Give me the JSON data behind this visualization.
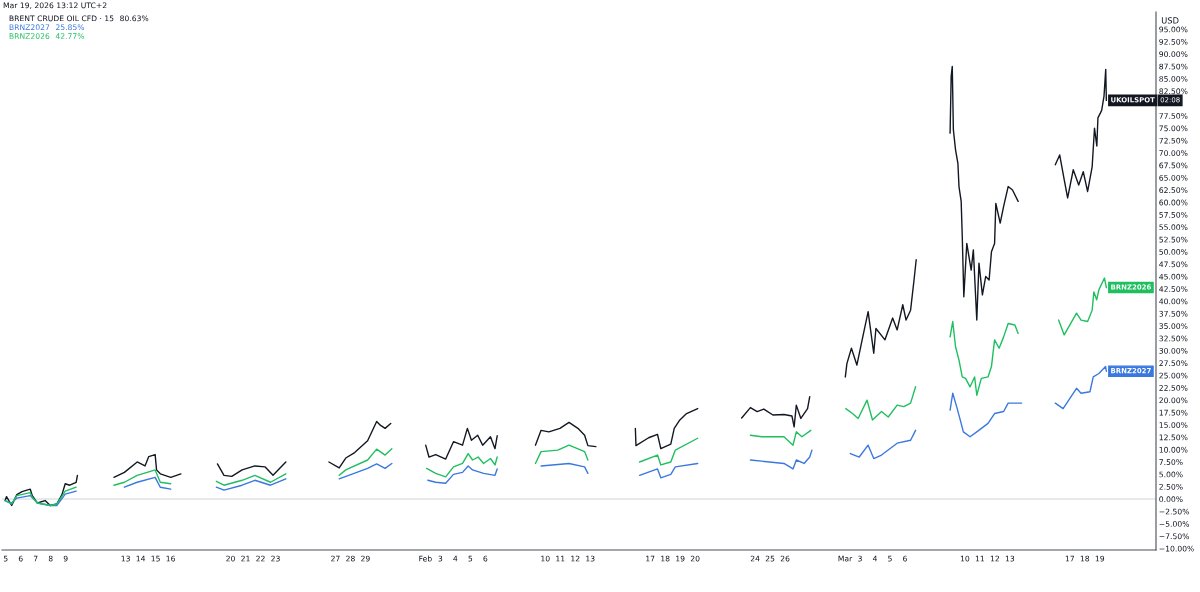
{
  "chart_data": {
    "type": "line",
    "title": "Mar 19, 2026 13:12 UTC+2",
    "ylabel": "USD",
    "legend": "top left",
    "line_style": "solid",
    "xlim": [
      "2026-01-04T18:00",
      "2026-03-22T18:00"
    ],
    "xticks": [
      {
        "value": "2026-01-05",
        "label": "5"
      },
      {
        "value": "2026-01-06",
        "label": "6"
      },
      {
        "value": "2026-01-07",
        "label": "7"
      },
      {
        "value": "2026-01-08",
        "label": "8"
      },
      {
        "value": "2026-01-09",
        "label": "9"
      },
      {
        "value": "2026-01-13",
        "label": "13"
      },
      {
        "value": "2026-01-14",
        "label": "14"
      },
      {
        "value": "2026-01-15",
        "label": "15"
      },
      {
        "value": "2026-01-16",
        "label": "16"
      },
      {
        "value": "2026-01-20",
        "label": "20"
      },
      {
        "value": "2026-01-21",
        "label": "21"
      },
      {
        "value": "2026-01-22",
        "label": "22"
      },
      {
        "value": "2026-01-23",
        "label": "23"
      },
      {
        "value": "2026-01-27",
        "label": "27"
      },
      {
        "value": "2026-01-28",
        "label": "28"
      },
      {
        "value": "2026-01-29",
        "label": "29"
      },
      {
        "value": "2026-02-02",
        "label": "Feb"
      },
      {
        "value": "2026-02-03",
        "label": "3"
      },
      {
        "value": "2026-02-04",
        "label": "4"
      },
      {
        "value": "2026-02-05",
        "label": "5"
      },
      {
        "value": "2026-02-06",
        "label": "6"
      },
      {
        "value": "2026-02-10",
        "label": "10"
      },
      {
        "value": "2026-02-11",
        "label": "11"
      },
      {
        "value": "2026-02-12",
        "label": "12"
      },
      {
        "value": "2026-02-13",
        "label": "13"
      },
      {
        "value": "2026-02-17",
        "label": "17"
      },
      {
        "value": "2026-02-18",
        "label": "18"
      },
      {
        "value": "2026-02-19",
        "label": "19"
      },
      {
        "value": "2026-02-20",
        "label": "20"
      },
      {
        "value": "2026-02-24",
        "label": "24"
      },
      {
        "value": "2026-02-25",
        "label": "25"
      },
      {
        "value": "2026-02-26",
        "label": "26"
      },
      {
        "value": "2026-03-02",
        "label": "Mar"
      },
      {
        "value": "2026-03-03",
        "label": "3"
      },
      {
        "value": "2026-03-04",
        "label": "4"
      },
      {
        "value": "2026-03-05",
        "label": "5"
      },
      {
        "value": "2026-03-06",
        "label": "6"
      },
      {
        "value": "2026-03-10",
        "label": "10"
      },
      {
        "value": "2026-03-11",
        "label": "11"
      },
      {
        "value": "2026-03-12",
        "label": "12"
      },
      {
        "value": "2026-03-13",
        "label": "13"
      },
      {
        "value": "2026-03-17",
        "label": "17"
      },
      {
        "value": "2026-03-18",
        "label": "18"
      },
      {
        "value": "2026-03-19",
        "label": "19"
      }
    ],
    "ylim": [
      -10.3,
      98.5
    ],
    "yticks": [
      {
        "value": -10,
        "label": "−10.00%"
      },
      {
        "value": -7.5,
        "label": "−7.50%"
      },
      {
        "value": -5,
        "label": "−5.00%"
      },
      {
        "value": -2.5,
        "label": "−2.50%"
      },
      {
        "value": 0,
        "label": "0.00%"
      },
      {
        "value": 2.5,
        "label": "2.50%"
      },
      {
        "value": 5,
        "label": "5.00%"
      },
      {
        "value": 7.5,
        "label": "7.50%"
      },
      {
        "value": 10,
        "label": "10.00%"
      },
      {
        "value": 12.5,
        "label": "12.50%"
      },
      {
        "value": 15,
        "label": "15.00%"
      },
      {
        "value": 17.5,
        "label": "17.50%"
      },
      {
        "value": 20,
        "label": "20.00%"
      },
      {
        "value": 22.5,
        "label": "22.50%"
      },
      {
        "value": 25,
        "label": "25.00%"
      },
      {
        "value": 27.5,
        "label": "27.50%"
      },
      {
        "value": 30,
        "label": "30.00%"
      },
      {
        "value": 32.5,
        "label": "32.50%"
      },
      {
        "value": 35,
        "label": "35.00%"
      },
      {
        "value": 37.5,
        "label": "37.50%"
      },
      {
        "value": 40,
        "label": "40.00%"
      },
      {
        "value": 42.5,
        "label": "42.50%"
      },
      {
        "value": 45,
        "label": "45.00%"
      },
      {
        "value": 47.5,
        "label": "47.50%"
      },
      {
        "value": 50,
        "label": "50.00%"
      },
      {
        "value": 52.5,
        "label": "52.50%"
      },
      {
        "value": 55,
        "label": "55.00%"
      },
      {
        "value": 57.5,
        "label": "57.50%"
      },
      {
        "value": 60,
        "label": "60.00%"
      },
      {
        "value": 62.5,
        "label": "62.50%"
      },
      {
        "value": 65,
        "label": "65.00%"
      },
      {
        "value": 67.5,
        "label": "67.50%"
      },
      {
        "value": 70,
        "label": "70.00%"
      },
      {
        "value": 72.5,
        "label": "72.50%"
      },
      {
        "value": 75,
        "label": "75.00%"
      },
      {
        "value": 77.5,
        "label": "77.50%"
      },
      {
        "value": 82.5,
        "label": "82.50%"
      },
      {
        "value": 85,
        "label": "85.00%"
      },
      {
        "value": 87.5,
        "label": "87.50%"
      },
      {
        "value": 90,
        "label": "90.00%"
      },
      {
        "value": 92.5,
        "label": "92.50%"
      },
      {
        "value": 95,
        "label": "95.00%"
      }
    ],
    "ref_lines": [
      {
        "axis": "y",
        "value": 0,
        "color": "#d1d4dc"
      }
    ],
    "series": [
      {
        "name": "BRENT CRUDE OIL CFD · 15",
        "color": "#131722",
        "x": [
          "2026-01-04T23:00",
          "2026-01-05T01:15",
          "2026-01-05T09:30",
          "2026-01-05T17:45",
          "2026-01-06T02:00",
          "2026-01-06T15:15",
          "2026-01-06T18:30",
          "2026-01-07T02:45",
          "2026-01-07T15:00",
          "2026-01-07T23:15",
          "2026-01-08T09:45",
          "2026-01-08T18:00",
          "2026-01-08T23:15",
          "2026-01-09T06:30",
          "2026-01-09T16:45",
          "2026-01-09T18:45",
          "2026-01-10T12:00",
          "2026-01-12T05:15",
          "2026-01-12T22:00",
          "2026-01-13T18:30",
          "2026-01-14T07:00",
          "2026-01-14T13:00",
          "2026-01-14T23:15",
          "2026-01-15T01:30",
          "2026-01-15T07:30",
          "2026-01-16T00:15",
          "2026-01-16T16:30",
          "2026-01-17T12:00",
          "2026-01-19T03:00",
          "2026-01-19T13:30",
          "2026-01-20T02:00",
          "2026-01-20T18:30",
          "2026-01-21T15:00",
          "2026-01-22T07:30",
          "2026-01-22T20:00",
          "2026-01-23T16:30",
          "2026-01-24T12:00",
          "2026-01-26T13:30",
          "2026-01-27T06:00",
          "2026-01-27T16:30",
          "2026-01-28T06:45",
          "2026-01-29T03:30",
          "2026-01-29T18:00",
          "2026-01-30T00:15",
          "2026-01-30T07:30",
          "2026-01-30T16:30",
          "2026-01-31T12:00",
          "2026-02-02T00:30",
          "2026-02-02T05:45",
          "2026-02-02T16:30",
          "2026-02-03T08:30",
          "2026-02-03T21:00",
          "2026-02-04T11:30",
          "2026-02-04T19:15",
          "2026-02-05T01:45",
          "2026-02-05T11:45",
          "2026-02-05T19:45",
          "2026-02-06T08:15",
          "2026-02-06T15:30",
          "2026-02-06T19:00",
          "2026-02-07T12:00",
          "2026-02-09T08:15",
          "2026-02-09T17:15",
          "2026-02-10T05:45",
          "2026-02-10T23:30",
          "2026-02-11T14:00",
          "2026-02-12T04:15",
          "2026-02-12T15:00",
          "2026-02-12T20:15",
          "2026-02-13T09:00",
          "2026-02-14T12:00",
          "2026-02-16T00:15",
          "2026-02-16T01:15",
          "2026-02-16T21:30",
          "2026-02-17T11:45",
          "2026-02-17T17:00",
          "2026-02-18T09:00",
          "2026-02-18T14:30",
          "2026-02-18T23:30",
          "2026-02-19T10:15",
          "2026-02-20T04:00",
          "2026-02-21T12:00",
          "2026-02-23T02:30",
          "2026-02-23T16:30",
          "2026-02-24T03:15",
          "2026-02-24T14:00",
          "2026-02-25T04:30",
          "2026-02-25T22:15",
          "2026-02-26T11:00",
          "2026-02-26T14:30",
          "2026-02-26T18:00",
          "2026-02-27T01:15",
          "2026-02-27T12:00",
          "2026-02-27T15:30",
          "2026-02-28T12:00",
          "2026-03-02T00:30",
          "2026-03-02T03:00",
          "2026-03-02T10:15",
          "2026-03-02T19:00",
          "2026-03-03T02:15",
          "2026-03-03T13:00",
          "2026-03-03T22:00",
          "2026-03-04T01:30",
          "2026-03-04T16:00",
          "2026-03-05T04:15",
          "2026-03-05T11:30",
          "2026-03-05T20:30",
          "2026-03-06T01:45",
          "2026-03-06T09:00",
          "2026-03-06T14:30",
          "2026-03-06T18:00",
          "2026-03-07T12:00",
          "2026-03-09T00:15",
          "2026-03-09T02:00",
          "2026-03-09T03:45",
          "2026-03-09T05:30",
          "2026-03-09T09:00",
          "2026-03-09T12:45",
          "2026-03-09T14:30",
          "2026-03-09T18:00",
          "2026-03-09T19:45",
          "2026-03-09T22:15",
          "2026-03-10T03:00",
          "2026-03-10T10:00",
          "2026-03-10T13:30",
          "2026-03-10T19:00",
          "2026-03-10T22:30",
          "2026-03-11T04:00",
          "2026-03-11T09:15",
          "2026-03-11T14:45",
          "2026-03-11T18:30",
          "2026-03-11T23:30",
          "2026-03-12T01:30",
          "2026-03-12T08:30",
          "2026-03-12T14:00",
          "2026-03-12T21:15",
          "2026-03-13T04:15",
          "2026-03-13T13:15",
          "2026-03-14T12:00",
          "2026-03-16T00:45",
          "2026-03-16T07:45",
          "2026-03-16T15:00",
          "2026-03-16T20:30",
          "2026-03-17T05:30",
          "2026-03-17T14:15",
          "2026-03-17T21:30",
          "2026-03-18T04:30",
          "2026-03-18T11:45",
          "2026-03-18T15:30",
          "2026-03-18T19:15",
          "2026-03-18T21:00",
          "2026-03-19T03:00",
          "2026-03-19T06:45",
          "2026-03-19T09:30",
          "2026-03-19T10:30"
        ],
        "values": [
          -0.3,
          0.5,
          -1.3,
          0.9,
          1.5,
          2.0,
          0.7,
          -0.8,
          -0.3,
          -1.3,
          -1.0,
          0.9,
          3.1,
          2.8,
          3.4,
          4.8,
          null,
          4.4,
          5.4,
          7.5,
          6.7,
          8.6,
          9.0,
          5.9,
          5.1,
          4.4,
          5.1,
          null,
          7.1,
          4.8,
          4.6,
          5.9,
          6.7,
          6.5,
          4.8,
          7.5,
          null,
          7.5,
          6.3,
          8.3,
          9.4,
          11.8,
          15.7,
          14.9,
          14.3,
          15.3,
          null,
          10.9,
          8.5,
          9.0,
          8.1,
          11.6,
          10.9,
          14.3,
          11.9,
          12.9,
          10.9,
          12.6,
          10.2,
          12.8,
          null,
          10.9,
          13.9,
          13.6,
          14.3,
          15.5,
          14.3,
          12.9,
          10.8,
          10.6,
          null,
          14.3,
          10.8,
          12.4,
          13.1,
          10.2,
          11.1,
          14.3,
          16.0,
          17.3,
          18.3,
          null,
          16.4,
          18.5,
          17.7,
          18.2,
          17.0,
          17.1,
          16.8,
          14.6,
          19.0,
          16.3,
          18.3,
          20.7,
          null,
          24.7,
          27.4,
          30.5,
          27.1,
          31.5,
          37.9,
          29.5,
          34.5,
          32.2,
          36.6,
          34.2,
          39.3,
          36.2,
          38.2,
          44.3,
          48.4,
          null,
          74.0,
          85.5,
          87.5,
          74.7,
          70.6,
          67.9,
          63.2,
          60.2,
          53.1,
          40.9,
          51.7,
          46.3,
          50.4,
          36.2,
          47.7,
          41.3,
          45.0,
          44.3,
          50.0,
          51.7,
          59.8,
          55.8,
          59.2,
          63.2,
          62.5,
          60.2,
          null,
          67.6,
          69.6,
          64.6,
          60.9,
          66.6,
          63.5,
          66.2,
          62.2,
          67.2,
          75.0,
          71.4,
          77.1,
          78.6,
          81.5,
          86.9,
          80.63
        ]
      },
      {
        "name": "BRNZ2027",
        "color": "#3a78e0",
        "x": [
          "2026-01-04T23:00",
          "2026-01-05T09:15",
          "2026-01-05T17:45",
          "2026-01-06T15:15",
          "2026-01-07T02:45",
          "2026-01-07T23:30",
          "2026-01-08T09:45",
          "2026-01-08T23:15",
          "2026-01-09T16:45",
          "2026-01-10T12:00",
          "2026-01-12T22:00",
          "2026-01-13T18:30",
          "2026-01-14T23:15",
          "2026-01-15T07:30",
          "2026-01-16T00:15",
          "2026-01-17T12:00",
          "2026-01-19T01:15",
          "2026-01-19T13:30",
          "2026-01-20T18:30",
          "2026-01-21T15:00",
          "2026-01-22T16:00",
          "2026-01-23T16:30",
          "2026-01-24T12:00",
          "2026-01-27T06:00",
          "2026-01-29T03:30",
          "2026-01-29T18:00",
          "2026-01-30T07:30",
          "2026-01-30T18:15",
          "2026-01-31T12:00",
          "2026-02-02T04:00",
          "2026-02-02T16:30",
          "2026-02-03T08:30",
          "2026-02-03T21:00",
          "2026-02-04T11:30",
          "2026-02-04T20:30",
          "2026-02-05T03:30",
          "2026-02-05T21:15",
          "2026-02-06T15:30",
          "2026-02-06T19:00",
          "2026-02-07T12:00",
          "2026-02-09T17:15",
          "2026-02-11T14:00",
          "2026-02-12T15:00",
          "2026-02-12T20:15",
          "2026-02-14T12:00",
          "2026-02-16T07:00",
          "2026-02-17T11:45",
          "2026-02-17T17:00",
          "2026-02-18T09:00",
          "2026-02-18T16:15",
          "2026-02-20T04:00",
          "2026-02-21T12:00",
          "2026-02-23T16:30",
          "2026-02-25T22:15",
          "2026-02-26T12:45",
          "2026-02-26T18:00",
          "2026-02-27T06:30",
          "2026-02-27T15:30",
          "2026-02-27T19:00",
          "2026-02-28T12:00",
          "2026-03-02T08:30",
          "2026-03-02T22:45",
          "2026-03-03T13:00",
          "2026-03-03T22:00",
          "2026-03-04T10:30",
          "2026-03-05T11:30",
          "2026-03-06T09:00",
          "2026-03-06T17:00",
          "2026-03-07T12:00",
          "2026-03-09T00:15",
          "2026-03-09T04:30",
          "2026-03-09T10:45",
          "2026-03-09T18:00",
          "2026-03-09T21:30",
          "2026-03-10T08:15",
          "2026-03-10T19:00",
          "2026-03-11T13:00",
          "2026-03-11T23:30",
          "2026-03-12T14:00",
          "2026-03-12T21:15",
          "2026-03-13T18:45",
          "2026-03-14T12:00",
          "2026-03-16T00:45",
          "2026-03-16T13:15",
          "2026-03-17T10:45",
          "2026-03-17T18:00",
          "2026-03-18T08:15",
          "2026-03-18T13:30",
          "2026-03-18T22:30",
          "2026-03-19T09:15",
          "2026-03-19T10:30"
        ],
        "values": [
          -0.3,
          -0.8,
          0.2,
          0.7,
          -0.8,
          -1.3,
          -1.3,
          1.0,
          1.6,
          null,
          2.4,
          3.4,
          4.4,
          2.4,
          2.0,
          null,
          2.4,
          1.8,
          2.8,
          3.8,
          2.8,
          4.1,
          null,
          4.1,
          6.2,
          7.1,
          6.2,
          7.2,
          null,
          3.8,
          3.4,
          3.2,
          5.0,
          5.4,
          6.7,
          5.9,
          5.2,
          4.8,
          6.1,
          null,
          6.7,
          7.2,
          6.5,
          5.2,
          null,
          4.8,
          6.1,
          4.3,
          5.0,
          6.5,
          7.2,
          null,
          7.9,
          7.2,
          6.1,
          7.9,
          7.2,
          8.5,
          9.9,
          null,
          9.2,
          8.5,
          10.9,
          8.2,
          8.9,
          11.3,
          11.9,
          13.9,
          null,
          18.0,
          21.4,
          18.7,
          15.3,
          13.6,
          12.6,
          13.6,
          15.3,
          17.3,
          17.7,
          19.4,
          19.4,
          null,
          19.4,
          18.3,
          22.4,
          21.4,
          21.7,
          24.7,
          25.4,
          26.8,
          25.85
        ]
      },
      {
        "name": "BRNZ2026",
        "color": "#1fbf5f",
        "x": [
          "2026-01-04T23:00",
          "2026-01-05T09:15",
          "2026-01-05T17:45",
          "2026-01-06T15:15",
          "2026-01-06T18:30",
          "2026-01-07T02:45",
          "2026-01-07T23:30",
          "2026-01-08T09:45",
          "2026-01-08T23:15",
          "2026-01-09T16:45",
          "2026-01-10T12:00",
          "2026-01-12T05:15",
          "2026-01-12T22:00",
          "2026-01-13T18:30",
          "2026-01-14T13:00",
          "2026-01-14T23:15",
          "2026-01-15T07:30",
          "2026-01-16T00:15",
          "2026-01-17T12:00",
          "2026-01-19T01:15",
          "2026-01-19T13:30",
          "2026-01-20T18:30",
          "2026-01-21T15:00",
          "2026-01-22T16:00",
          "2026-01-23T16:30",
          "2026-01-24T12:00",
          "2026-01-27T06:00",
          "2026-01-27T16:30",
          "2026-01-29T03:30",
          "2026-01-29T18:00",
          "2026-01-30T07:30",
          "2026-01-30T18:15",
          "2026-01-31T12:00",
          "2026-02-02T02:00",
          "2026-02-02T16:30",
          "2026-02-03T08:30",
          "2026-02-03T21:00",
          "2026-02-04T11:30",
          "2026-02-04T20:30",
          "2026-02-05T03:30",
          "2026-02-05T12:30",
          "2026-02-05T21:15",
          "2026-02-06T08:15",
          "2026-02-06T15:30",
          "2026-02-06T19:00",
          "2026-02-07T12:00",
          "2026-02-09T08:15",
          "2026-02-09T17:15",
          "2026-02-10T20:00",
          "2026-02-11T14:00",
          "2026-02-12T15:00",
          "2026-02-12T20:15",
          "2026-02-14T12:00",
          "2026-02-16T07:00",
          "2026-02-17T11:45",
          "2026-02-17T17:00",
          "2026-02-18T09:00",
          "2026-02-18T16:15",
          "2026-02-20T04:00",
          "2026-02-21T12:00",
          "2026-02-23T16:30",
          "2026-02-24T10:30",
          "2026-02-25T22:15",
          "2026-02-26T12:45",
          "2026-02-26T18:00",
          "2026-02-27T03:00",
          "2026-02-27T17:15",
          "2026-02-28T12:00",
          "2026-03-02T01:15",
          "2026-03-02T12:00",
          "2026-03-02T21:00",
          "2026-03-03T11:15",
          "2026-03-03T20:00",
          "2026-03-04T10:30",
          "2026-03-04T21:15",
          "2026-03-05T11:30",
          "2026-03-05T22:15",
          "2026-03-06T09:00",
          "2026-03-06T17:00",
          "2026-03-07T12:00",
          "2026-03-09T00:15",
          "2026-03-09T04:30",
          "2026-03-09T09:00",
          "2026-03-09T14:30",
          "2026-03-09T19:45",
          "2026-03-10T01:00",
          "2026-03-10T08:15",
          "2026-03-10T15:30",
          "2026-03-10T19:00",
          "2026-03-11T02:15",
          "2026-03-11T13:00",
          "2026-03-11T18:30",
          "2026-03-11T23:30",
          "2026-03-12T06:45",
          "2026-03-12T14:00",
          "2026-03-12T21:15",
          "2026-03-13T08:00",
          "2026-03-13T13:15",
          "2026-03-14T12:00",
          "2026-03-16T06:00",
          "2026-03-16T15:00",
          "2026-03-17T10:45",
          "2026-03-17T18:00",
          "2026-03-18T04:30",
          "2026-03-18T11:45",
          "2026-03-18T14:30",
          "2026-03-18T19:00",
          "2026-03-18T22:30",
          "2026-03-19T07:30",
          "2026-03-19T10:30"
        ],
        "values": [
          -0.3,
          -1.0,
          0.7,
          1.3,
          0.3,
          -0.8,
          -1.3,
          -1.0,
          1.6,
          2.4,
          null,
          2.8,
          3.4,
          4.8,
          5.5,
          5.9,
          3.4,
          3.1,
          null,
          3.6,
          2.8,
          3.8,
          4.8,
          3.4,
          5.1,
          null,
          4.8,
          5.9,
          7.9,
          10.1,
          8.9,
          10.2,
          null,
          6.2,
          5.2,
          4.5,
          6.5,
          7.2,
          9.2,
          7.9,
          8.5,
          7.2,
          8.2,
          6.9,
          8.5,
          null,
          7.2,
          9.6,
          9.9,
          10.9,
          9.6,
          7.9,
          null,
          7.5,
          8.9,
          6.9,
          7.5,
          9.9,
          12.3,
          null,
          12.9,
          12.6,
          12.6,
          10.9,
          13.6,
          12.6,
          13.9,
          null,
          18.3,
          17.3,
          16.3,
          20.0,
          16.0,
          17.7,
          16.6,
          19.0,
          18.7,
          19.4,
          22.7,
          null,
          32.8,
          35.9,
          30.8,
          28.1,
          24.7,
          24.4,
          22.7,
          24.7,
          21.0,
          24.4,
          24.7,
          26.8,
          32.2,
          30.5,
          32.8,
          35.5,
          35.2,
          33.5,
          null,
          36.2,
          33.2,
          37.6,
          36.2,
          35.9,
          38.2,
          41.9,
          40.3,
          42.3,
          44.7,
          42.77
        ]
      }
    ],
    "annotations": [
      "80.63%",
      "25.85%",
      "42.77%",
      "02:08",
      {
        "text": "UKOILSPOT",
        "x": "2026-03-19T10:30",
        "y": 80.63
      },
      {
        "text": "BRNZ2026",
        "x": "2026-03-19T10:30",
        "y": 42.77
      },
      {
        "text": "BRNZ2027",
        "x": "2026-03-19T10:30",
        "y": 25.85
      }
    ]
  }
}
